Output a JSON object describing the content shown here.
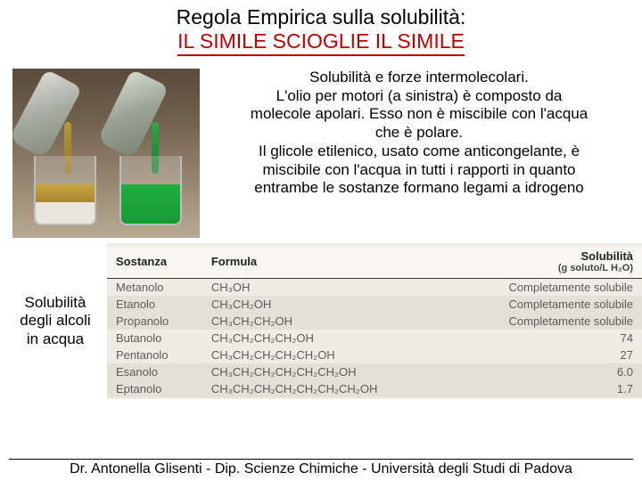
{
  "title": {
    "line1": "Regola Empirica sulla solubilità:",
    "line2": "IL SIMILE SCIOGLIE IL SIMILE"
  },
  "colors": {
    "accent_red": "#c00000",
    "text": "#000000",
    "table_bg": "#efece4",
    "table_header_bg": "#f8f7f2",
    "table_row_shade": "#e3e0d6",
    "table_text": "#5b5b5b",
    "table_border": "#333333",
    "oil_liquid": "#b79a3e",
    "glycol_liquid": "#1fae3f",
    "photo_bg_top": "#5a4a3a",
    "photo_bg_bottom": "#b8aa92"
  },
  "typography": {
    "title_fontsize_pt": 18,
    "body_fontsize_pt": 13,
    "table_fontsize_pt": 10,
    "footer_fontsize_pt": 12,
    "family_display": "Comic Sans MS",
    "family_table": "Arial"
  },
  "description": {
    "l1": "Solubilità e forze intermolecolari.",
    "l2": "L'olio per motori (a sinistra) è composto da",
    "l3": "molecole apolari. Esso non è miscibile con l'acqua",
    "l4": "che è polare.",
    "l5": "Il glicole etilenico, usato come anticongelante, è",
    "l6": "miscibile con l'acqua in tutti i rapporti in quanto",
    "l7": "entrambe le sostanze formano legami a idrogeno"
  },
  "side_label": {
    "l1": "Solubilità",
    "l2": "degli alcoli",
    "l3": "in acqua"
  },
  "table": {
    "type": "table",
    "columns": [
      {
        "key": "substance",
        "label": "Sostanza",
        "align": "left"
      },
      {
        "key": "formula",
        "label": "Formula",
        "align": "left"
      },
      {
        "key": "solubility",
        "label": "Solubilità",
        "sublabel": "(g soluto/L H₂O)",
        "align": "right"
      }
    ],
    "rows": [
      {
        "substance": "Metanolo",
        "formula": "CH₃OH",
        "solubility": "Completamente solubile",
        "shaded": false
      },
      {
        "substance": "Etanolo",
        "formula": "CH₃CH₂OH",
        "solubility": "Completamente solubile",
        "shaded": true
      },
      {
        "substance": "Propanolo",
        "formula": "CH₃CH₂CH₂OH",
        "solubility": "Completamente solubile",
        "shaded": true
      },
      {
        "substance": "Butanolo",
        "formula": "CH₃CH₂CH₂CH₂OH",
        "solubility": "74",
        "shaded": false
      },
      {
        "substance": "Pentanolo",
        "formula": "CH₃CH₂CH₂CH₂CH₂OH",
        "solubility": "27",
        "shaded": false
      },
      {
        "substance": "Esanolo",
        "formula": "CH₃CH₂CH₂CH₂CH₂CH₂OH",
        "solubility": "6.0",
        "shaded": true
      },
      {
        "substance": "Eptanolo",
        "formula": "CH₃CH₂CH₂CH₂CH₂CH₂CH₂OH",
        "solubility": "1.7",
        "shaded": true
      }
    ]
  },
  "footer": "Dr. Antonella Glisenti - Dip. Scienze Chimiche - Università degli Studi di Padova",
  "photo": {
    "type": "infographic",
    "left_liquid": "olio per motori",
    "left_behavior": "immiscibile (strati)",
    "right_liquid": "glicole etilenico",
    "right_behavior": "miscibile (verde uniforme)"
  }
}
